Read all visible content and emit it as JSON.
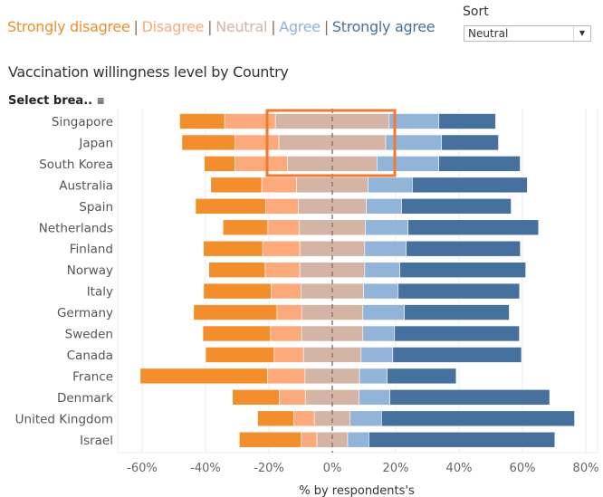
{
  "legend": {
    "items": [
      {
        "label": "Strongly disagree",
        "color": "#f28e2b"
      },
      {
        "label": "Disagree",
        "color": "#fca97c"
      },
      {
        "label": "Neutral",
        "color": "#d4b4a5"
      },
      {
        "label": "Agree",
        "color": "#92b4d8"
      },
      {
        "label": "Strongly agree",
        "color": "#46709d"
      }
    ],
    "separator": "|"
  },
  "sort": {
    "label": "Sort",
    "selected": "Neutral",
    "icon": "dropdown-arrow-icon"
  },
  "select_break_label": "Select brea..",
  "select_break_icon": "sort-icon",
  "highlight_color": "#ee7b30",
  "chart_data": {
    "type": "bar",
    "subtype": "diverging stacked horizontal bar",
    "title": "Vaccination willingness level by Country",
    "xlabel": "% by respondents's",
    "ylabel": "",
    "xlim": [
      -65,
      83
    ],
    "xticks": [
      "-60%",
      "-40%",
      "-20%",
      "0%",
      "20%",
      "40%",
      "60%",
      "80%"
    ],
    "xtick_values": [
      -60,
      -40,
      -20,
      0,
      20,
      40,
      60,
      80
    ],
    "grid": "vertical",
    "zero_line": "dashed",
    "highlight": [
      "Singapore",
      "Japan",
      "South Korea"
    ],
    "categories": [
      "Singapore",
      "Japan",
      "South Korea",
      "Australia",
      "Spain",
      "Netherlands",
      "Finland",
      "Norway",
      "Italy",
      "Germany",
      "Sweden",
      "Canada",
      "France",
      "Denmark",
      "United Kingdom",
      "Israel"
    ],
    "series": [
      {
        "name": "Strongly disagree",
        "values": [
          14.2,
          16.8,
          9.7,
          16.1,
          22.2,
          14.2,
          18.7,
          17.8,
          21.3,
          26.3,
          21.4,
          21.7,
          40.2,
          14.8,
          11.4,
          19.5
        ]
      },
      {
        "name": "Disagree",
        "values": [
          16.0,
          13.8,
          16.6,
          11.0,
          10.2,
          9.8,
          11.7,
          10.9,
          9.4,
          7.8,
          9.8,
          9.2,
          11.8,
          8.2,
          6.5,
          5.0
        ]
      },
      {
        "name": "Neutral",
        "values": [
          35.9,
          33.7,
          28.2,
          22.5,
          21.5,
          21.0,
          20.5,
          20.5,
          19.8,
          19.3,
          19.3,
          18.2,
          17.2,
          17.0,
          11.3,
          9.7
        ]
      },
      {
        "name": "Agree",
        "values": [
          15.7,
          17.6,
          19.5,
          14.0,
          11.1,
          13.4,
          13.1,
          11.1,
          10.9,
          13.1,
          10.0,
          10.0,
          8.7,
          9.7,
          9.9,
          6.7
        ]
      },
      {
        "name": "Strongly agree",
        "values": [
          17.9,
          18.0,
          25.7,
          36.3,
          34.6,
          41.2,
          36.0,
          39.7,
          38.3,
          33.1,
          39.4,
          40.6,
          21.8,
          50.4,
          60.9,
          58.7
        ]
      }
    ]
  }
}
